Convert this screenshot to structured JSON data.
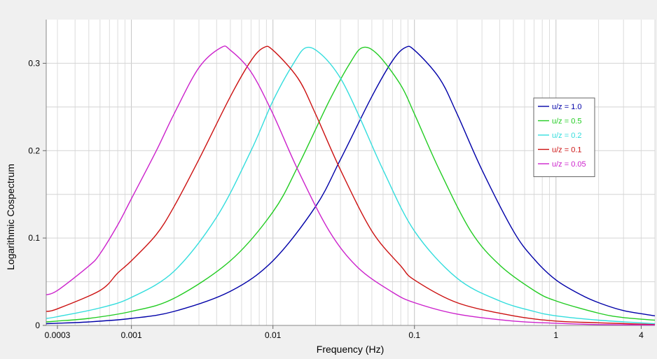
{
  "chart_data": {
    "type": "line",
    "title": "",
    "xlabel": "Frequency (Hz)",
    "ylabel": "Logarithmic Cospectrum",
    "xscale": "log",
    "xlim": [
      0.00025,
      5
    ],
    "ylim": [
      0,
      0.35
    ],
    "x_ticks": [
      {
        "value": 0.0003,
        "label": "0.0003"
      },
      {
        "value": 0.001,
        "label": "0.001"
      },
      {
        "value": 0.01,
        "label": "0.01"
      },
      {
        "value": 0.1,
        "label": "0.1"
      },
      {
        "value": 1,
        "label": "1"
      },
      {
        "value": 4,
        "label": "4"
      }
    ],
    "y_ticks": [
      {
        "value": 0,
        "label": "0"
      },
      {
        "value": 0.1,
        "label": "0.1"
      },
      {
        "value": 0.2,
        "label": "0.2"
      },
      {
        "value": 0.3,
        "label": "0.3"
      }
    ],
    "grid": true,
    "legend_position": "right",
    "series": [
      {
        "name": "u/z = 1.0",
        "color": "#0000a8",
        "points": [
          [
            0.00025,
            0.002
          ],
          [
            0.0003,
            0.0025
          ],
          [
            0.0005,
            0.004
          ],
          [
            0.001,
            0.008
          ],
          [
            0.002,
            0.016
          ],
          [
            0.005,
            0.039
          ],
          [
            0.01,
            0.074
          ],
          [
            0.02,
            0.136
          ],
          [
            0.03,
            0.19
          ],
          [
            0.05,
            0.262
          ],
          [
            0.07,
            0.303
          ],
          [
            0.086,
            0.318
          ],
          [
            0.1,
            0.315
          ],
          [
            0.15,
            0.283
          ],
          [
            0.2,
            0.242
          ],
          [
            0.3,
            0.178
          ],
          [
            0.5,
            0.108
          ],
          [
            0.7,
            0.076
          ],
          [
            1,
            0.052
          ],
          [
            1.5,
            0.035
          ],
          [
            2,
            0.026
          ],
          [
            3,
            0.017
          ],
          [
            5,
            0.011
          ]
        ]
      },
      {
        "name": "u/z = 0.5",
        "color": "#22cc22",
        "points": [
          [
            0.00025,
            0.004
          ],
          [
            0.0003,
            0.005
          ],
          [
            0.0005,
            0.008
          ],
          [
            0.001,
            0.016
          ],
          [
            0.002,
            0.031
          ],
          [
            0.005,
            0.074
          ],
          [
            0.01,
            0.13
          ],
          [
            0.015,
            0.182
          ],
          [
            0.025,
            0.257
          ],
          [
            0.035,
            0.3
          ],
          [
            0.043,
            0.318
          ],
          [
            0.055,
            0.31
          ],
          [
            0.08,
            0.275
          ],
          [
            0.1,
            0.242
          ],
          [
            0.15,
            0.178
          ],
          [
            0.25,
            0.108
          ],
          [
            0.4,
            0.069
          ],
          [
            0.7,
            0.04
          ],
          [
            1,
            0.028
          ],
          [
            2,
            0.014
          ],
          [
            3,
            0.009
          ],
          [
            5,
            0.006
          ]
        ]
      },
      {
        "name": "u/z = 0.2",
        "color": "#33dddd",
        "points": [
          [
            0.00025,
            0.008
          ],
          [
            0.0003,
            0.01
          ],
          [
            0.0006,
            0.02
          ],
          [
            0.001,
            0.032
          ],
          [
            0.002,
            0.062
          ],
          [
            0.004,
            0.124
          ],
          [
            0.007,
            0.2
          ],
          [
            0.01,
            0.257
          ],
          [
            0.014,
            0.3
          ],
          [
            0.0172,
            0.318
          ],
          [
            0.022,
            0.31
          ],
          [
            0.03,
            0.283
          ],
          [
            0.04,
            0.242
          ],
          [
            0.06,
            0.178
          ],
          [
            0.1,
            0.108
          ],
          [
            0.2,
            0.054
          ],
          [
            0.4,
            0.028
          ],
          [
            0.7,
            0.016
          ],
          [
            1,
            0.011
          ],
          [
            2,
            0.006
          ],
          [
            5,
            0.002
          ]
        ]
      },
      {
        "name": "u/z = 0.1",
        "color": "#cc1111",
        "points": [
          [
            0.00025,
            0.016
          ],
          [
            0.0003,
            0.019
          ],
          [
            0.0006,
            0.04
          ],
          [
            0.0008,
            0.06
          ],
          [
            0.001,
            0.074
          ],
          [
            0.0015,
            0.104
          ],
          [
            0.002,
            0.136
          ],
          [
            0.003,
            0.19
          ],
          [
            0.005,
            0.262
          ],
          [
            0.007,
            0.303
          ],
          [
            0.0086,
            0.318
          ],
          [
            0.01,
            0.315
          ],
          [
            0.015,
            0.283
          ],
          [
            0.02,
            0.242
          ],
          [
            0.03,
            0.178
          ],
          [
            0.05,
            0.108
          ],
          [
            0.08,
            0.068
          ],
          [
            0.1,
            0.052
          ],
          [
            0.2,
            0.026
          ],
          [
            0.5,
            0.011
          ],
          [
            1,
            0.005
          ],
          [
            2,
            0.003
          ],
          [
            5,
            0.001
          ]
        ]
      },
      {
        "name": "u/z = 0.05",
        "color": "#cc22cc",
        "points": [
          [
            0.00025,
            0.035
          ],
          [
            0.0003,
            0.04
          ],
          [
            0.0005,
            0.068
          ],
          [
            0.0006,
            0.082
          ],
          [
            0.0008,
            0.115
          ],
          [
            0.001,
            0.145
          ],
          [
            0.0015,
            0.2
          ],
          [
            0.002,
            0.242
          ],
          [
            0.003,
            0.295
          ],
          [
            0.0043,
            0.318
          ],
          [
            0.005,
            0.315
          ],
          [
            0.007,
            0.29
          ],
          [
            0.01,
            0.242
          ],
          [
            0.015,
            0.178
          ],
          [
            0.025,
            0.108
          ],
          [
            0.04,
            0.066
          ],
          [
            0.07,
            0.038
          ],
          [
            0.1,
            0.026
          ],
          [
            0.2,
            0.013
          ],
          [
            0.5,
            0.005
          ],
          [
            1,
            0.0025
          ],
          [
            2,
            0.001
          ],
          [
            5,
            0.0005
          ]
        ]
      }
    ]
  }
}
